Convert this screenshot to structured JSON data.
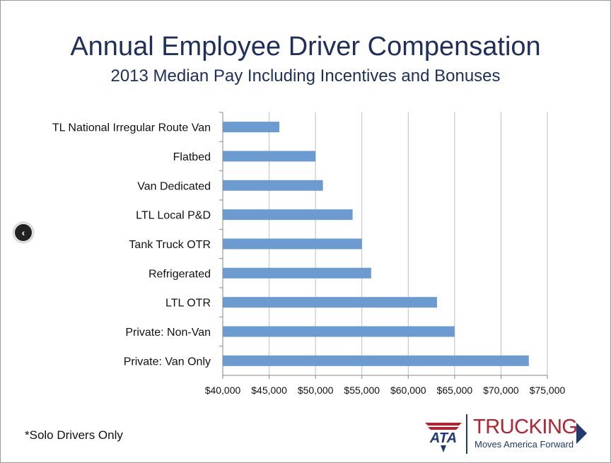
{
  "chart_data": {
    "type": "bar",
    "orientation": "horizontal",
    "title": "Annual Employee Driver Compensation",
    "subtitle": "2013 Median Pay Including Incentives and Bonuses",
    "categories": [
      "TL National Irregular Route Van",
      "Flatbed",
      "Van Dedicated",
      "LTL Local P&D",
      "Tank Truck OTR",
      "Refrigerated",
      "LTL OTR",
      "Private: Non-Van",
      "Private: Van Only"
    ],
    "values": [
      46100,
      50000,
      50800,
      54000,
      55000,
      56000,
      63100,
      65000,
      73000
    ],
    "xlim": [
      40000,
      75000
    ],
    "xticks": [
      40000,
      45000,
      50000,
      55000,
      60000,
      65000,
      70000,
      75000
    ],
    "xtick_labels": [
      "$40,000",
      "$45,000",
      "$50,000",
      "$55,000",
      "$60,000",
      "$65,000",
      "$70,000",
      "$75,000"
    ],
    "grid": "vertical",
    "bar_color": "#6b9bd1",
    "grid_color": "#bfbfbf"
  },
  "footnote": "*Solo Drivers Only",
  "logo": {
    "mark_text": "ATA",
    "wordmark": "TRUCKING",
    "tagline": "Moves America Forward"
  },
  "nav": {
    "prev_icon": "chevron-left-icon",
    "prev_glyph": "‹"
  },
  "colors": {
    "title": "#1f2f5c",
    "logo_red": "#b8202e",
    "logo_blue": "#1f3a73"
  }
}
